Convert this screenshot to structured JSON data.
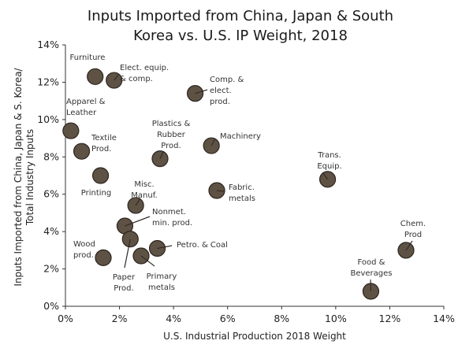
{
  "chart_data": {
    "type": "scatter",
    "title": [
      "Inputs Imported from China, Japan & South",
      "Korea vs. U.S. IP Weight, 2018"
    ],
    "xlabel": "U.S. Industrial Production 2018 Weight",
    "ylabel": [
      "Inputs Imported from China, Japan & S. Korea/",
      "Total Industry Inputs"
    ],
    "xlim": [
      0,
      14
    ],
    "ylim": [
      0,
      14
    ],
    "xticks": [
      "0%",
      "2%",
      "4%",
      "6%",
      "8%",
      "10%",
      "12%",
      "14%"
    ],
    "yticks": [
      "0%",
      "2%",
      "4%",
      "6%",
      "8%",
      "10%",
      "12%",
      "14%"
    ],
    "grid": false,
    "marker_color": "#5e5245",
    "points": [
      {
        "label": [
          "Furniture"
        ],
        "x": 1.1,
        "y": 12.3
      },
      {
        "label": [
          "Elect. equip.",
          "& comp."
        ],
        "x": 1.8,
        "y": 12.1
      },
      {
        "label": [
          "Comp. &",
          "elect.",
          "prod."
        ],
        "x": 4.8,
        "y": 11.4
      },
      {
        "label": [
          "Apparel &",
          "Leather"
        ],
        "x": 0.2,
        "y": 9.4
      },
      {
        "label": [
          "Textile",
          "Prod."
        ],
        "x": 0.6,
        "y": 8.3
      },
      {
        "label": [
          "Printing"
        ],
        "x": 1.3,
        "y": 7.0
      },
      {
        "label": [
          "Plastics &",
          "Rubber",
          "Prod."
        ],
        "x": 3.5,
        "y": 7.9
      },
      {
        "label": [
          "Machinery"
        ],
        "x": 5.4,
        "y": 8.6
      },
      {
        "label": [
          "Trans.",
          "Equip."
        ],
        "x": 9.7,
        "y": 6.8
      },
      {
        "label": [
          "Fabric.",
          "metals"
        ],
        "x": 5.6,
        "y": 6.2
      },
      {
        "label": [
          "Misc.",
          "Manuf."
        ],
        "x": 2.6,
        "y": 5.4
      },
      {
        "label": [
          "Nonmet.",
          "min. prod."
        ],
        "x": 2.2,
        "y": 4.3
      },
      {
        "label": [
          "Paper",
          "Prod."
        ],
        "x": 2.4,
        "y": 3.6
      },
      {
        "label": [
          "Petro. & Coal"
        ],
        "x": 3.4,
        "y": 3.1
      },
      {
        "label": [
          "Primary",
          "metals"
        ],
        "x": 2.8,
        "y": 2.7
      },
      {
        "label": [
          "Wood",
          "prod."
        ],
        "x": 1.4,
        "y": 2.6
      },
      {
        "label": [
          "Chem.",
          "Prod"
        ],
        "x": 12.6,
        "y": 3.0
      },
      {
        "label": [
          "Food &",
          "Beverages"
        ],
        "x": 11.3,
        "y": 0.8
      }
    ]
  }
}
